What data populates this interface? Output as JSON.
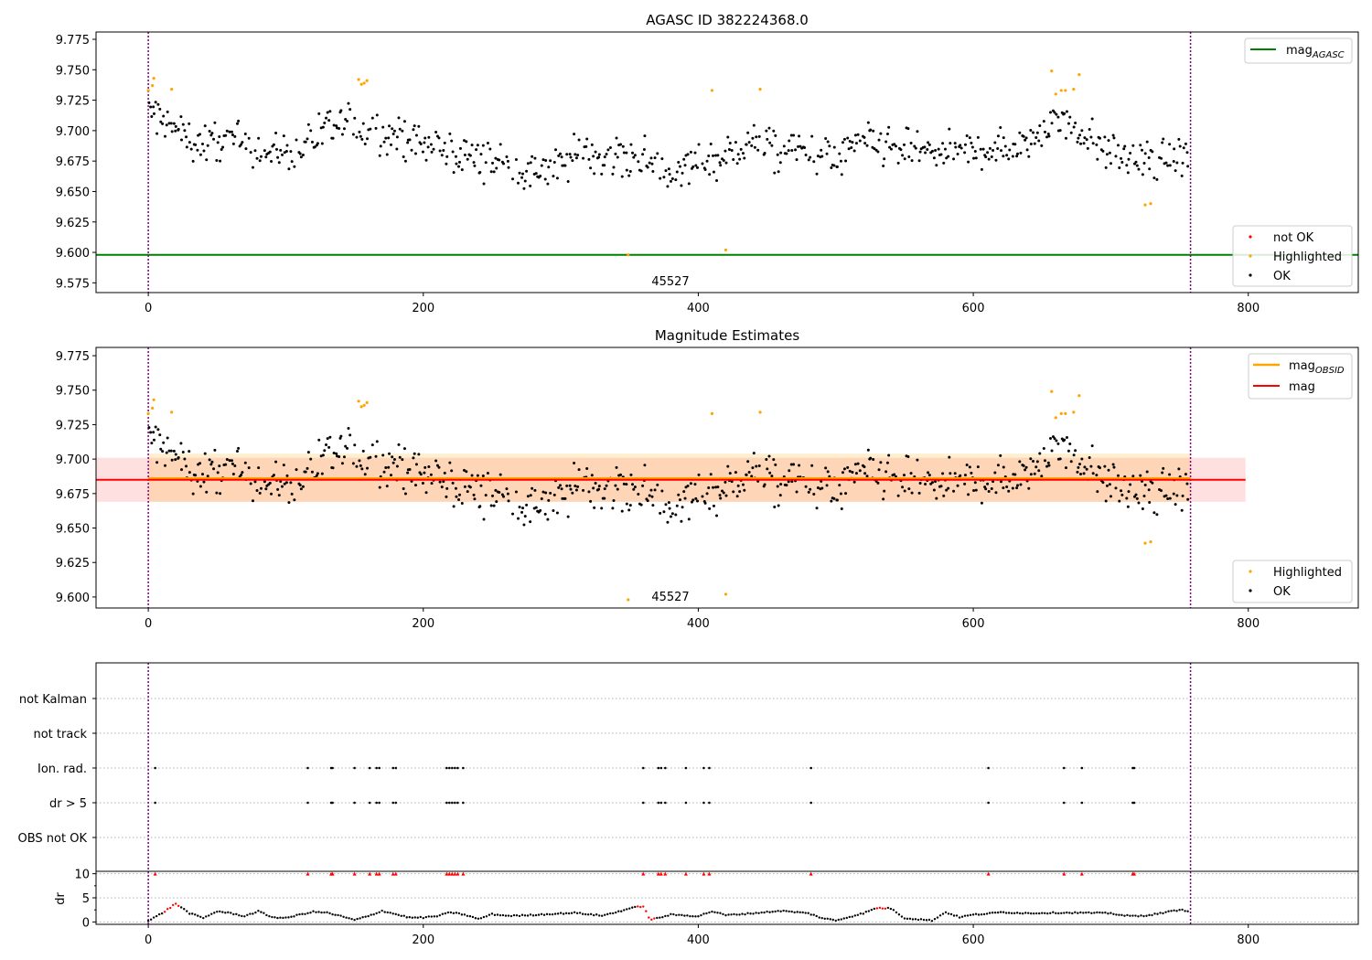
{
  "figure": {
    "title": "AGASC ID 382224368.0"
  },
  "chart_data": [
    {
      "id": "panel1",
      "type": "scatter",
      "title": "AGASC ID 382224368.0",
      "xlabel": "",
      "ylabel": "",
      "xlim": [
        -38,
        880
      ],
      "ylim": [
        9.567,
        9.781
      ],
      "xticks": [
        0,
        200,
        400,
        600,
        800
      ],
      "yticks": [
        9.575,
        9.6,
        9.625,
        9.65,
        9.675,
        9.7,
        9.725,
        9.75,
        9.775
      ],
      "yticklabels": [
        "9.575",
        "9.600",
        "9.625",
        "9.650",
        "9.675",
        "9.700",
        "9.725",
        "9.750",
        "9.775"
      ],
      "obsid_boundaries": [
        0,
        758
      ],
      "obsid_label": {
        "text": "45527",
        "x": 379,
        "y": 9.575
      },
      "reference_lines": [
        {
          "name": "mag_AGASC",
          "y": 9.598,
          "color": "#008000"
        }
      ],
      "highlighted_points": [
        [
          0,
          9.733
        ],
        [
          3,
          9.737
        ],
        [
          4,
          9.743
        ],
        [
          17,
          9.734
        ],
        [
          153,
          9.742
        ],
        [
          155,
          9.738
        ],
        [
          157,
          9.739
        ],
        [
          159,
          9.741
        ],
        [
          410,
          9.733
        ],
        [
          445,
          9.734
        ],
        [
          657,
          9.749
        ],
        [
          660,
          9.73
        ],
        [
          664,
          9.733
        ],
        [
          667,
          9.733
        ],
        [
          673,
          9.734
        ],
        [
          677,
          9.746
        ],
        [
          725,
          9.639
        ],
        [
          729,
          9.64
        ],
        [
          349,
          9.598
        ],
        [
          420,
          9.602
        ]
      ],
      "ok_trend": [
        [
          0,
          9.716
        ],
        [
          20,
          9.7
        ],
        [
          40,
          9.688
        ],
        [
          60,
          9.694
        ],
        [
          80,
          9.683
        ],
        [
          100,
          9.683
        ],
        [
          120,
          9.692
        ],
        [
          140,
          9.705
        ],
        [
          160,
          9.702
        ],
        [
          180,
          9.696
        ],
        [
          200,
          9.69
        ],
        [
          220,
          9.683
        ],
        [
          240,
          9.678
        ],
        [
          260,
          9.673
        ],
        [
          280,
          9.662
        ],
        [
          300,
          9.673
        ],
        [
          320,
          9.683
        ],
        [
          340,
          9.679
        ],
        [
          360,
          9.676
        ],
        [
          380,
          9.665
        ],
        [
          400,
          9.675
        ],
        [
          420,
          9.68
        ],
        [
          440,
          9.69
        ],
        [
          460,
          9.683
        ],
        [
          480,
          9.683
        ],
        [
          500,
          9.676
        ],
        [
          520,
          9.69
        ],
        [
          540,
          9.685
        ],
        [
          560,
          9.683
        ],
        [
          580,
          9.683
        ],
        [
          600,
          9.683
        ],
        [
          620,
          9.686
        ],
        [
          640,
          9.693
        ],
        [
          660,
          9.71
        ],
        [
          680,
          9.698
        ],
        [
          700,
          9.683
        ],
        [
          720,
          9.672
        ],
        [
          740,
          9.676
        ],
        [
          757,
          9.678
        ]
      ],
      "ok_spread": 0.016,
      "legend": {
        "placement": "lower right",
        "entries": [
          {
            "label": "not OK",
            "color": "#ff0000"
          },
          {
            "label": "Highlighted",
            "color": "#ffa500"
          },
          {
            "label": "OK",
            "color": "#000000"
          }
        ]
      },
      "legend_top": {
        "placement": "upper right",
        "entries": [
          {
            "label": "mag",
            "sub": "AGASC",
            "color": "#008000"
          }
        ]
      }
    },
    {
      "id": "panel2",
      "type": "scatter",
      "title": "Magnitude Estimates",
      "xlabel": "",
      "ylabel": "",
      "xlim": [
        -38,
        880
      ],
      "ylim": [
        9.592,
        9.781
      ],
      "xticks": [
        0,
        200,
        400,
        600,
        800
      ],
      "yticks": [
        9.6,
        9.625,
        9.65,
        9.675,
        9.7,
        9.725,
        9.75,
        9.775
      ],
      "yticklabels": [
        "9.600",
        "9.625",
        "9.650",
        "9.675",
        "9.700",
        "9.725",
        "9.750",
        "9.775"
      ],
      "obsid_boundaries": [
        0,
        758
      ],
      "obsid_label": {
        "text": "45527",
        "x": 379,
        "y": 9.6
      },
      "mag_obsid": {
        "y": 9.686,
        "x0": 0,
        "x1": 758,
        "band": [
          9.669,
          9.704
        ],
        "color": "#ffa500"
      },
      "mag": {
        "y": 9.685,
        "x0": -38,
        "x1": 798,
        "band": [
          9.669,
          9.701
        ],
        "color": "#ff0000"
      },
      "legend": {
        "placement": "lower right",
        "entries": [
          {
            "label": "Highlighted",
            "color": "#ffa500"
          },
          {
            "label": "OK",
            "color": "#000000"
          }
        ]
      },
      "legend_top": {
        "placement": "upper right",
        "entries": [
          {
            "label": "mag",
            "sub": "OBSID",
            "color": "#ffa500"
          },
          {
            "label": "mag",
            "sub": "",
            "color": "#ff0000"
          }
        ]
      }
    },
    {
      "id": "panel3",
      "type": "scatter",
      "title": "",
      "xlim": [
        -38,
        880
      ],
      "categories": [
        "not Kalman",
        "not track",
        "Ion. rad.",
        "dr > 5",
        "OBS not OK"
      ],
      "flag_times": [
        5,
        116,
        133,
        134,
        150,
        161,
        166,
        168,
        178,
        180,
        217,
        219,
        221,
        223,
        225,
        229,
        360,
        371,
        373,
        376,
        391,
        404,
        408,
        482,
        611,
        666,
        679,
        716,
        717
      ],
      "flagged_rows": [
        "Ion. rad.",
        "dr > 5"
      ],
      "obsid_boundaries": [
        0,
        758
      ]
    },
    {
      "id": "panel4",
      "type": "scatter",
      "title": "",
      "ylabel": "dr",
      "xlim": [
        -38,
        880
      ],
      "ylim": [
        -0.5,
        10.5
      ],
      "xticks": [
        0,
        200,
        400,
        600,
        800
      ],
      "yticks": [
        0,
        5,
        10
      ],
      "yticklabels": [
        "0",
        "5",
        "10"
      ],
      "obsid_boundaries": [
        0,
        758
      ],
      "dr_trend": [
        [
          0,
          0.2
        ],
        [
          10,
          1.8
        ],
        [
          20,
          3.8
        ],
        [
          30,
          1.8
        ],
        [
          40,
          0.8
        ],
        [
          50,
          2.2
        ],
        [
          60,
          1.8
        ],
        [
          70,
          1.2
        ],
        [
          80,
          2.2
        ],
        [
          90,
          1.0
        ],
        [
          100,
          0.8
        ],
        [
          110,
          1.5
        ],
        [
          120,
          2.1
        ],
        [
          130,
          1.9
        ],
        [
          140,
          1.2
        ],
        [
          150,
          0.4
        ],
        [
          160,
          1.2
        ],
        [
          170,
          2.3
        ],
        [
          180,
          1.6
        ],
        [
          190,
          0.9
        ],
        [
          200,
          0.9
        ],
        [
          210,
          1.2
        ],
        [
          220,
          2.0
        ],
        [
          230,
          1.5
        ],
        [
          240,
          0.6
        ],
        [
          250,
          1.6
        ],
        [
          260,
          1.3
        ],
        [
          270,
          1.3
        ],
        [
          290,
          1.6
        ],
        [
          310,
          1.9
        ],
        [
          330,
          1.3
        ],
        [
          340,
          2.0
        ],
        [
          350,
          2.8
        ],
        [
          360,
          3.3
        ],
        [
          365,
          0.4
        ],
        [
          380,
          1.5
        ],
        [
          400,
          1.2
        ],
        [
          410,
          2.2
        ],
        [
          420,
          1.4
        ],
        [
          440,
          1.8
        ],
        [
          460,
          2.3
        ],
        [
          480,
          1.8
        ],
        [
          490,
          0.8
        ],
        [
          500,
          0.3
        ],
        [
          520,
          1.8
        ],
        [
          530,
          2.9
        ],
        [
          540,
          2.8
        ],
        [
          550,
          0.8
        ],
        [
          570,
          0.3
        ],
        [
          580,
          2.0
        ],
        [
          590,
          1.0
        ],
        [
          600,
          1.5
        ],
        [
          610,
          1.7
        ],
        [
          620,
          2.0
        ],
        [
          640,
          1.8
        ],
        [
          660,
          1.9
        ],
        [
          680,
          1.9
        ],
        [
          700,
          1.8
        ],
        [
          710,
          1.3
        ],
        [
          720,
          1.2
        ],
        [
          730,
          1.5
        ],
        [
          740,
          2.0
        ],
        [
          750,
          2.5
        ],
        [
          757,
          2.3
        ]
      ],
      "dr_red_ranges": [
        [
          12,
          22
        ],
        [
          355,
          368
        ],
        [
          530,
          536
        ]
      ]
    }
  ]
}
